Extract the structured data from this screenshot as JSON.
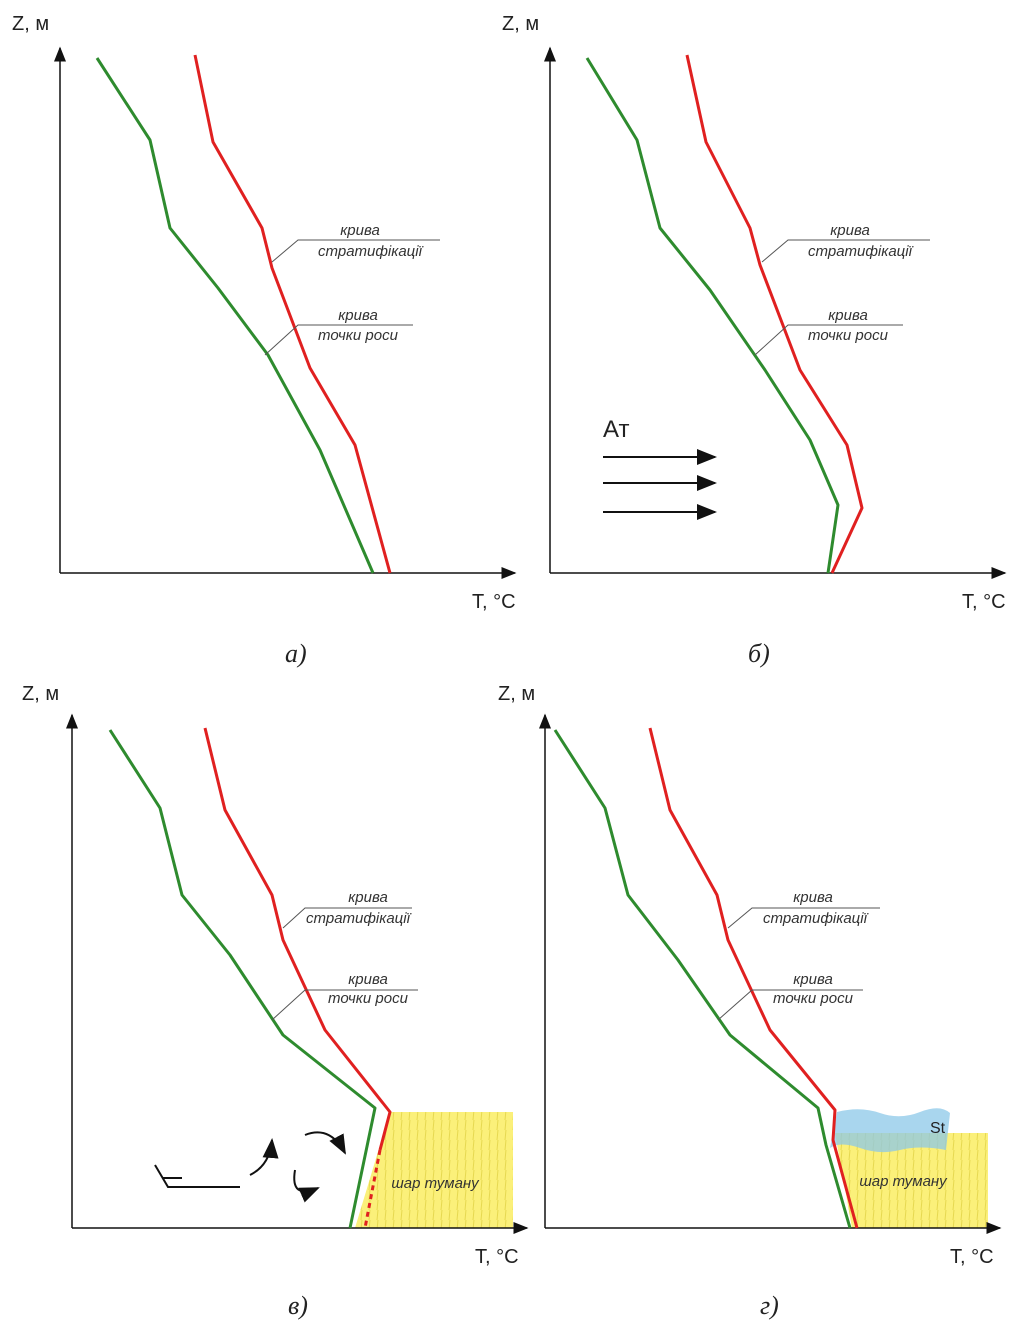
{
  "panels": [
    {
      "caption": "а)",
      "y_axis": "Z, м",
      "x_axis": "T, °C",
      "stratification_label": [
        "крива",
        "стратифікації"
      ],
      "dew_point_label": [
        "крива",
        "точки роси"
      ]
    },
    {
      "caption": "б)",
      "y_axis": "Z, м",
      "x_axis": "T, °C",
      "stratification_label": [
        "крива",
        "стратифікації"
      ],
      "dew_point_label": [
        "крива",
        "точки роси"
      ],
      "advection_label": "Ат"
    },
    {
      "caption": "в)",
      "y_axis": "Z, м",
      "x_axis": "T, °C",
      "stratification_label": [
        "крива",
        "стратифікації"
      ],
      "dew_point_label": [
        "крива",
        "точки роси"
      ],
      "fog_label": "шар туману"
    },
    {
      "caption": "г)",
      "y_axis": "Z, м",
      "x_axis": "T, °C",
      "stratification_label": [
        "крива",
        "стратифікації"
      ],
      "dew_point_label": [
        "крива",
        "точки роси"
      ],
      "fog_label": "шар туману",
      "cloud_label": "St"
    }
  ]
}
